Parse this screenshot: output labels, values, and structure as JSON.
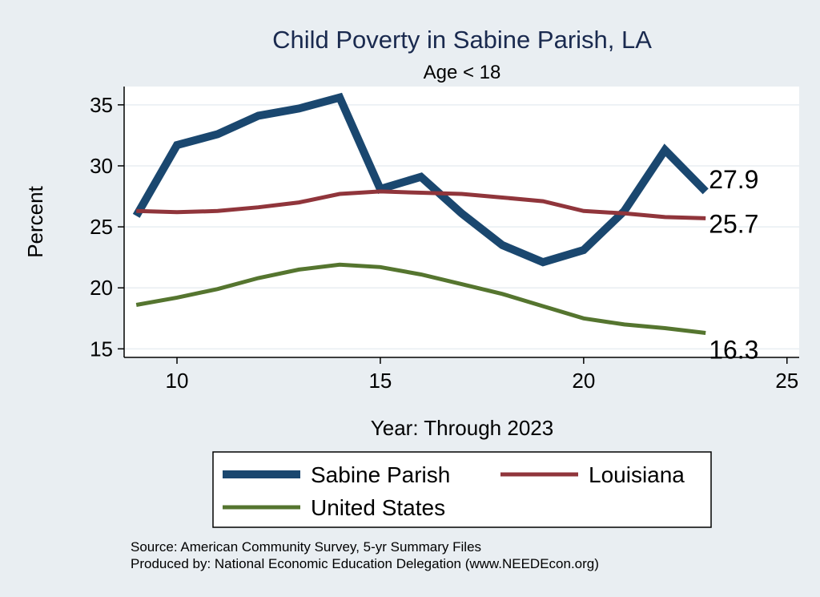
{
  "chart_data": {
    "type": "line",
    "title": "Child Poverty in Sabine Parish, LA",
    "subtitle": "Age < 18",
    "xlabel": "Year: Through 2023",
    "ylabel": "Percent",
    "xlim": [
      8.7,
      25.3
    ],
    "ylim": [
      14.3,
      36.5
    ],
    "xticks": [
      10,
      15,
      20,
      25
    ],
    "yticks": [
      15,
      20,
      25,
      30,
      35
    ],
    "grid": true,
    "legend_position": "bottom",
    "series": [
      {
        "name": "Sabine Parish",
        "color": "#1a476f",
        "x": [
          9,
          10,
          11,
          12,
          13,
          14,
          15,
          16,
          17,
          18,
          19,
          20,
          21,
          22,
          23
        ],
        "values": [
          25.9,
          31.7,
          32.6,
          34.1,
          34.7,
          35.6,
          28.1,
          29.1,
          26.1,
          23.5,
          22.1,
          23.1,
          26.3,
          31.3,
          27.9
        ],
        "end_label": "27.9"
      },
      {
        "name": "Louisiana",
        "color": "#90353b",
        "x": [
          9,
          10,
          11,
          12,
          13,
          14,
          15,
          16,
          17,
          18,
          19,
          20,
          21,
          22,
          23
        ],
        "values": [
          26.3,
          26.2,
          26.3,
          26.6,
          27.0,
          27.7,
          27.9,
          27.8,
          27.7,
          27.4,
          27.1,
          26.3,
          26.1,
          25.8,
          25.7
        ],
        "end_label": "25.7"
      },
      {
        "name": "United States",
        "color": "#55752f",
        "x": [
          9,
          10,
          11,
          12,
          13,
          14,
          15,
          16,
          17,
          18,
          19,
          20,
          21,
          22,
          23
        ],
        "values": [
          18.6,
          19.2,
          19.9,
          20.8,
          21.5,
          21.9,
          21.7,
          21.1,
          20.3,
          19.5,
          18.5,
          17.5,
          17.0,
          16.7,
          16.3
        ],
        "end_label": "16.3"
      }
    ]
  },
  "footnotes": {
    "source": "Source: American Community Survey, 5-yr Summary Files",
    "produced": "Produced by: National Economic Education Delegation (www.NEEDEcon.org)"
  }
}
